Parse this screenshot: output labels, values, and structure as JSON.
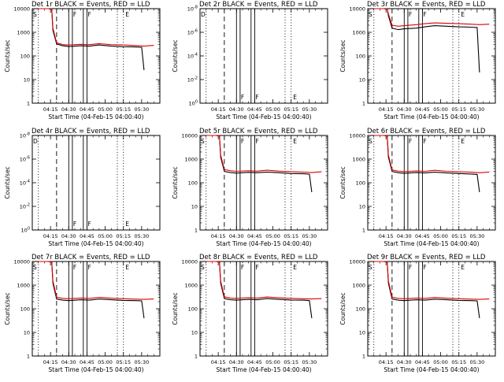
{
  "colors": {
    "events": "#000000",
    "lld": "#dd0000",
    "axis": "#000000",
    "background": "#ffffff"
  },
  "chart_data": [
    {
      "type": "line",
      "title": "Det 1r BLACK = Events, RED = LLD",
      "ylabel": "Counts/sec",
      "xlabel": "Start Time (04-Feb-15 04:00:40)",
      "x_ticks": [
        "04:15",
        "04:30",
        "04:45",
        "05:00",
        "05:15",
        "05:30"
      ],
      "y_ticks": [
        "1",
        "10",
        "100",
        "1000",
        "10000"
      ],
      "yscale": "log",
      "ylim": [
        1,
        10000
      ],
      "flags": [
        "S",
        "F",
        "F",
        "E"
      ],
      "series": [
        {
          "name": "Events",
          "color": "#000000",
          "x": [
            "04:05",
            "04:13",
            "04:16",
            "04:17",
            "04:20",
            "04:25",
            "04:30",
            "04:40",
            "04:47",
            "04:55",
            "05:05",
            "05:15",
            "05:25",
            "05:30",
            "05:32"
          ],
          "y": [
            10000,
            10000,
            9500,
            1200,
            320,
            270,
            250,
            270,
            260,
            290,
            260,
            245,
            240,
            230,
            25
          ]
        },
        {
          "name": "LLD",
          "color": "#dd0000",
          "x": [
            "04:05",
            "04:13",
            "04:16",
            "04:17",
            "04:20",
            "04:25",
            "04:30",
            "04:40",
            "04:47",
            "04:55",
            "05:05",
            "05:15",
            "05:25",
            "05:32",
            "05:40"
          ],
          "y": [
            10000,
            10000,
            9800,
            1500,
            360,
            300,
            290,
            310,
            300,
            330,
            300,
            290,
            275,
            260,
            280
          ]
        }
      ]
    },
    {
      "type": "line",
      "title": "Det 2r BLACK = Events, RED = LLD",
      "ylabel": "Counts/sec",
      "xlabel": "Start Time (04-Feb-15 04:00:40)",
      "x_ticks": [
        "04:15",
        "04:30",
        "04:45",
        "05:00",
        "05:15",
        "05:30"
      ],
      "y_ticks": [
        "10^0",
        "10^-2",
        "10^-4",
        "10^-6",
        "10^-8"
      ],
      "yscale": "log",
      "ylim": [
        "10^0",
        "10^-8"
      ],
      "flags": [
        "D",
        "F",
        "F",
        "E"
      ],
      "series": []
    },
    {
      "type": "line",
      "title": "Det 3r BLACK = Events, RED = LLD",
      "ylabel": "Counts/sec",
      "xlabel": "Start Time (04-Feb-15 04:00:40)",
      "x_ticks": [
        "04:15",
        "04:30",
        "04:45",
        "05:00",
        "05:15",
        "05:30"
      ],
      "y_ticks": [
        "1",
        "10",
        "100",
        "1000",
        "10000"
      ],
      "yscale": "log",
      "ylim": [
        1,
        10000
      ],
      "flags": [
        "S",
        "F",
        "F",
        "E"
      ],
      "series": [
        {
          "name": "Events",
          "color": "#000000",
          "x": [
            "04:05",
            "04:13",
            "04:16",
            "04:17",
            "04:20",
            "04:25",
            "04:30",
            "04:40",
            "04:47",
            "04:55",
            "05:05",
            "05:15",
            "05:25",
            "05:30",
            "05:32"
          ],
          "y": [
            10000,
            10000,
            9500,
            5000,
            1500,
            1300,
            1400,
            1500,
            1700,
            1900,
            1800,
            1700,
            1650,
            1600,
            20
          ]
        },
        {
          "name": "LLD",
          "color": "#dd0000",
          "x": [
            "04:05",
            "04:13",
            "04:16",
            "04:17",
            "04:20",
            "04:25",
            "04:30",
            "04:40",
            "04:47",
            "04:55",
            "05:05",
            "05:15",
            "05:25",
            "05:32",
            "05:40"
          ],
          "y": [
            10000,
            10000,
            9800,
            6000,
            2000,
            1800,
            1900,
            2100,
            2300,
            2500,
            2400,
            2300,
            2200,
            2100,
            2200
          ]
        }
      ]
    },
    {
      "type": "line",
      "title": "Det 4r BLACK = Events, RED = LLD",
      "ylabel": "Counts/sec",
      "xlabel": "Start Time (04-Feb-15 04:00:40)",
      "x_ticks": [
        "04:15",
        "04:30",
        "04:45",
        "05:00",
        "05:15",
        "05:30"
      ],
      "y_ticks": [
        "10^0",
        "10^-2",
        "10^-4",
        "10^-6",
        "10^-8"
      ],
      "yscale": "log",
      "ylim": [
        "10^0",
        "10^-8"
      ],
      "flags": [
        "D",
        "F",
        "F",
        "E"
      ],
      "series": []
    },
    {
      "type": "line",
      "title": "Det 5r BLACK = Events, RED = LLD",
      "ylabel": "Counts/sec",
      "xlabel": "Start Time (04-Feb-15 04:00:40)",
      "x_ticks": [
        "04:15",
        "04:30",
        "04:45",
        "05:00",
        "05:15",
        "05:30"
      ],
      "y_ticks": [
        "1",
        "10",
        "100",
        "1000",
        "10000"
      ],
      "yscale": "log",
      "ylim": [
        1,
        10000
      ],
      "flags": [
        "S",
        "F",
        "F",
        "E"
      ],
      "series": [
        {
          "name": "Events",
          "color": "#000000",
          "x": [
            "04:05",
            "04:13",
            "04:16",
            "04:17",
            "04:20",
            "04:25",
            "04:30",
            "04:40",
            "04:47",
            "04:55",
            "05:05",
            "05:15",
            "05:25",
            "05:30",
            "05:32"
          ],
          "y": [
            10000,
            10000,
            9500,
            1200,
            300,
            270,
            255,
            275,
            265,
            285,
            265,
            245,
            240,
            230,
            40
          ]
        },
        {
          "name": "LLD",
          "color": "#dd0000",
          "x": [
            "04:05",
            "04:13",
            "04:16",
            "04:17",
            "04:20",
            "04:25",
            "04:30",
            "04:40",
            "04:47",
            "04:55",
            "05:05",
            "05:15",
            "05:25",
            "05:32",
            "05:40"
          ],
          "y": [
            10000,
            10000,
            9800,
            1500,
            360,
            320,
            305,
            320,
            310,
            340,
            310,
            295,
            280,
            270,
            290
          ]
        }
      ]
    },
    {
      "type": "line",
      "title": "Det 6r BLACK = Events, RED = LLD",
      "ylabel": "Counts/sec",
      "xlabel": "Start Time (04-Feb-15 04:00:40)",
      "x_ticks": [
        "04:15",
        "04:30",
        "04:45",
        "05:00",
        "05:15",
        "05:30"
      ],
      "y_ticks": [
        "1",
        "10",
        "100",
        "1000",
        "10000"
      ],
      "yscale": "log",
      "ylim": [
        1,
        10000
      ],
      "flags": [
        "S",
        "F",
        "F",
        "E"
      ],
      "series": [
        {
          "name": "Events",
          "color": "#000000",
          "x": [
            "04:05",
            "04:13",
            "04:16",
            "04:17",
            "04:20",
            "04:25",
            "04:30",
            "04:40",
            "04:47",
            "04:55",
            "05:05",
            "05:15",
            "05:25",
            "05:30",
            "05:32"
          ],
          "y": [
            10000,
            10000,
            9500,
            1200,
            300,
            265,
            250,
            270,
            260,
            280,
            260,
            245,
            235,
            225,
            40
          ]
        },
        {
          "name": "LLD",
          "color": "#dd0000",
          "x": [
            "04:05",
            "04:13",
            "04:16",
            "04:17",
            "04:20",
            "04:25",
            "04:30",
            "04:40",
            "04:47",
            "04:55",
            "05:05",
            "05:15",
            "05:25",
            "05:32",
            "05:40"
          ],
          "y": [
            10000,
            10000,
            9800,
            1500,
            350,
            310,
            295,
            315,
            305,
            335,
            305,
            290,
            280,
            265,
            285
          ]
        }
      ]
    },
    {
      "type": "line",
      "title": "Det 7r BLACK = Events, RED = LLD",
      "ylabel": "Counts/sec",
      "xlabel": "Start Time (04-Feb-15 04:00:40)",
      "x_ticks": [
        "04:15",
        "04:30",
        "04:45",
        "05:00",
        "05:15",
        "05:30"
      ],
      "y_ticks": [
        "1",
        "10",
        "100",
        "1000",
        "10000"
      ],
      "yscale": "log",
      "ylim": [
        1,
        10000
      ],
      "flags": [
        "S",
        "F",
        "F",
        "E"
      ],
      "series": [
        {
          "name": "Events",
          "color": "#000000",
          "x": [
            "04:05",
            "04:13",
            "04:16",
            "04:17",
            "04:20",
            "04:25",
            "04:30",
            "04:40",
            "04:47",
            "04:55",
            "05:05",
            "05:15",
            "05:25",
            "05:30",
            "05:32"
          ],
          "y": [
            10000,
            10000,
            9500,
            1200,
            260,
            230,
            220,
            240,
            230,
            260,
            240,
            225,
            220,
            215,
            40
          ]
        },
        {
          "name": "LLD",
          "color": "#dd0000",
          "x": [
            "04:05",
            "04:13",
            "04:16",
            "04:17",
            "04:20",
            "04:25",
            "04:30",
            "04:40",
            "04:47",
            "04:55",
            "05:05",
            "05:15",
            "05:25",
            "05:32",
            "05:40"
          ],
          "y": [
            10000,
            10000,
            9800,
            1500,
            310,
            275,
            265,
            285,
            275,
            305,
            280,
            265,
            255,
            250,
            260
          ]
        }
      ]
    },
    {
      "type": "line",
      "title": "Det 8r BLACK = Events, RED = LLD",
      "ylabel": "Counts/sec",
      "xlabel": "Start Time (04-Feb-15 04:00:40)",
      "x_ticks": [
        "04:15",
        "04:30",
        "04:45",
        "05:00",
        "05:15",
        "05:30"
      ],
      "y_ticks": [
        "1",
        "10",
        "100",
        "1000",
        "10000"
      ],
      "yscale": "log",
      "ylim": [
        1,
        10000
      ],
      "flags": [
        "S",
        "F",
        "F",
        "E"
      ],
      "series": [
        {
          "name": "Events",
          "color": "#000000",
          "x": [
            "04:05",
            "04:13",
            "04:16",
            "04:17",
            "04:20",
            "04:25",
            "04:30",
            "04:40",
            "04:47",
            "04:55",
            "05:05",
            "05:15",
            "05:25",
            "05:30",
            "05:32"
          ],
          "y": [
            10000,
            10000,
            9500,
            1200,
            270,
            240,
            230,
            250,
            240,
            270,
            250,
            235,
            230,
            220,
            40
          ]
        },
        {
          "name": "LLD",
          "color": "#dd0000",
          "x": [
            "04:05",
            "04:13",
            "04:16",
            "04:17",
            "04:20",
            "04:25",
            "04:30",
            "04:40",
            "04:47",
            "04:55",
            "05:05",
            "05:15",
            "05:25",
            "05:32",
            "05:40"
          ],
          "y": [
            10000,
            10000,
            9800,
            1500,
            320,
            285,
            275,
            295,
            285,
            315,
            290,
            275,
            265,
            260,
            270
          ]
        }
      ]
    },
    {
      "type": "line",
      "title": "Det 9r BLACK = Events, RED = LLD",
      "ylabel": "Counts/sec",
      "xlabel": "Start Time (04-Feb-15 04:00:40)",
      "x_ticks": [
        "04:15",
        "04:30",
        "04:45",
        "05:00",
        "05:15",
        "05:30"
      ],
      "y_ticks": [
        "1",
        "10",
        "100",
        "1000",
        "10000"
      ],
      "yscale": "log",
      "ylim": [
        1,
        10000
      ],
      "flags": [
        "S",
        "F",
        "F",
        "E"
      ],
      "series": [
        {
          "name": "Events",
          "color": "#000000",
          "x": [
            "04:05",
            "04:13",
            "04:16",
            "04:17",
            "04:20",
            "04:25",
            "04:30",
            "04:40",
            "04:47",
            "04:55",
            "05:05",
            "05:15",
            "05:25",
            "05:30",
            "05:32"
          ],
          "y": [
            10000,
            10000,
            9500,
            1200,
            260,
            230,
            220,
            240,
            230,
            255,
            240,
            225,
            220,
            215,
            40
          ]
        },
        {
          "name": "LLD",
          "color": "#dd0000",
          "x": [
            "04:05",
            "04:13",
            "04:16",
            "04:17",
            "04:20",
            "04:25",
            "04:30",
            "04:40",
            "04:47",
            "04:55",
            "05:05",
            "05:15",
            "05:25",
            "05:32",
            "05:40"
          ],
          "y": [
            10000,
            10000,
            9800,
            1500,
            310,
            275,
            265,
            285,
            275,
            300,
            280,
            265,
            255,
            250,
            260
          ]
        }
      ]
    }
  ]
}
